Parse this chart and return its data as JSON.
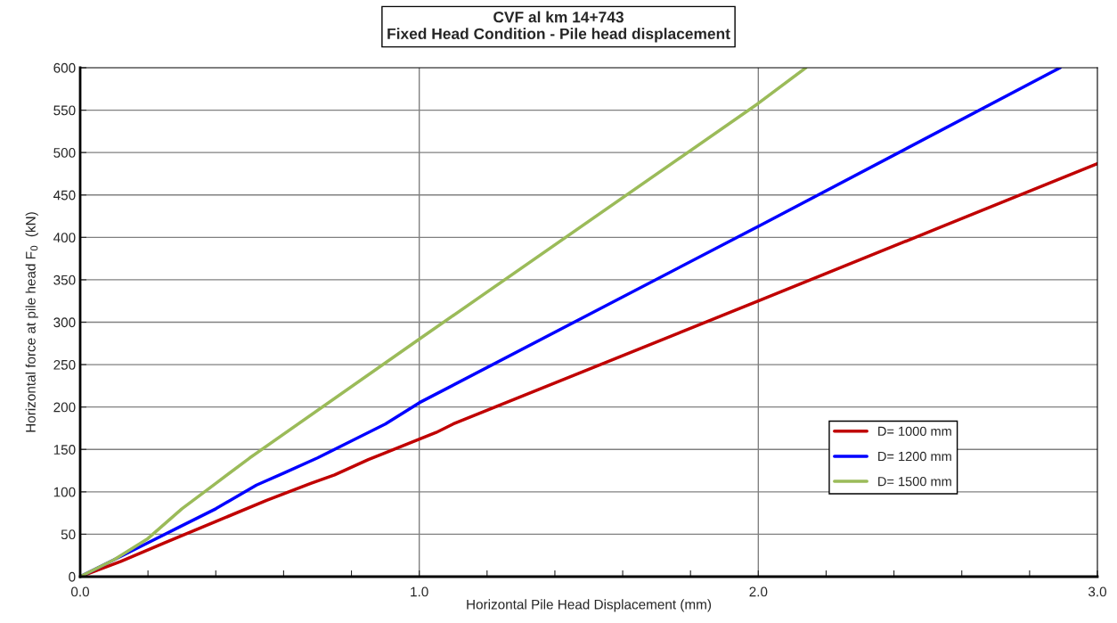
{
  "chart_data": {
    "type": "line",
    "title": "CVF al km 14+743\nFixed Head Condition - Pile head displacement",
    "xlabel": "Horizontal Pile Head Displacement (mm)",
    "ylabel": "Horizontal force at pile head F$_{0}$  (kN)",
    "xlim": [
      0,
      3
    ],
    "ylim": [
      0,
      600
    ],
    "xticks": [
      {
        "value": 0,
        "label": "0.0"
      },
      {
        "value": 0.2,
        "label": null
      },
      {
        "value": 0.4,
        "label": null
      },
      {
        "value": 0.6,
        "label": null
      },
      {
        "value": 0.8,
        "label": null
      },
      {
        "value": 1,
        "label": "1.0"
      },
      {
        "value": 1.2,
        "label": null
      },
      {
        "value": 1.4,
        "label": null
      },
      {
        "value": 1.6,
        "label": null
      },
      {
        "value": 1.8,
        "label": null
      },
      {
        "value": 2,
        "label": "2.0"
      },
      {
        "value": 2.2,
        "label": null
      },
      {
        "value": 2.4,
        "label": null
      },
      {
        "value": 2.6,
        "label": null
      },
      {
        "value": 2.8,
        "label": null
      },
      {
        "value": 3,
        "label": "3.0"
      }
    ],
    "yticks": [
      0,
      50,
      100,
      150,
      200,
      250,
      300,
      350,
      400,
      450,
      500,
      550,
      600
    ],
    "grid": true,
    "legend": "right",
    "marker": "none",
    "line_style": "solid",
    "series": [
      {
        "name": "D= 1000 mm",
        "color": "#c00000",
        "x": [
          0,
          0.12,
          0.25,
          0.4,
          0.55,
          0.68,
          0.75,
          0.85,
          1.05,
          1.1,
          2.0,
          3.0
        ],
        "values": [
          0,
          18,
          40,
          65,
          90,
          110,
          120,
          138,
          170,
          180,
          325,
          487
        ]
      },
      {
        "name": "D= 1200 mm",
        "color": "#0000ff",
        "x": [
          0,
          0.1,
          0.2,
          0.3,
          0.35,
          0.4,
          0.52,
          0.6,
          0.7,
          0.8,
          0.9,
          1.0,
          2.0,
          2.89
        ],
        "values": [
          0,
          20,
          40,
          60,
          70,
          80,
          108,
          122,
          140,
          160,
          180,
          205,
          413,
          600
        ]
      },
      {
        "name": "D= 1500 mm",
        "color": "#9bbb59",
        "x": [
          0,
          0.1,
          0.2,
          0.3,
          0.4,
          0.5,
          1.0,
          2.0,
          2.14
        ],
        "values": [
          0,
          20,
          45,
          80,
          110,
          140,
          280,
          558,
          600
        ]
      }
    ]
  }
}
